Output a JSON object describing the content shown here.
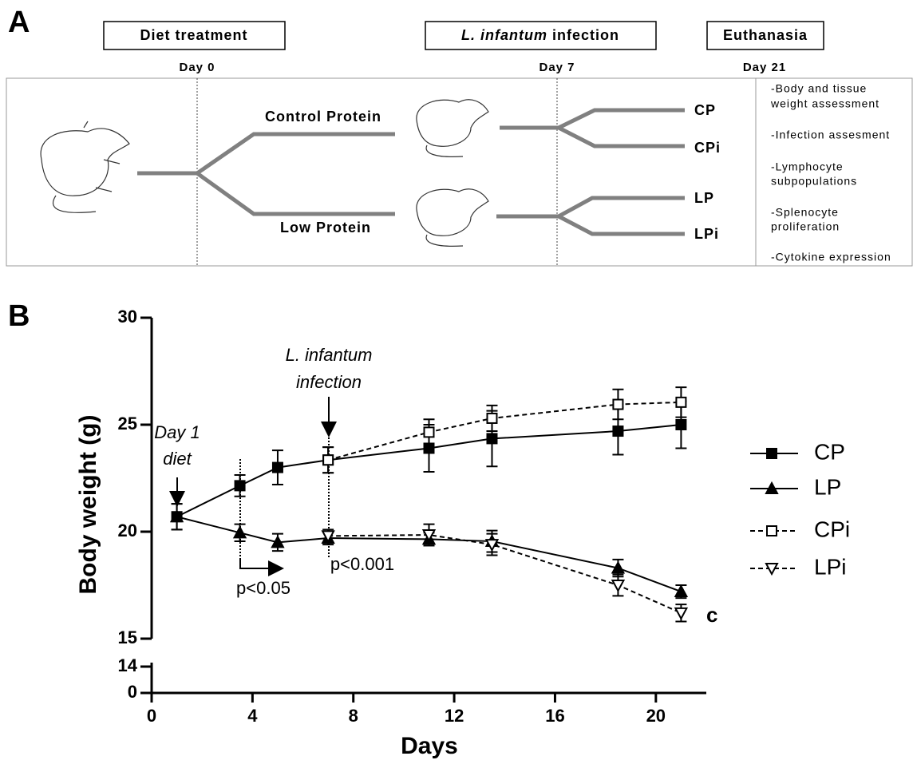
{
  "panel_a": {
    "label": "A",
    "boxes": [
      {
        "text": "Diet treatment"
      },
      {
        "italic": "L. infantum",
        "text": "infection"
      },
      {
        "text": "Euthanasia"
      }
    ],
    "days": [
      "Day 0",
      "Day 7",
      "Day 21"
    ],
    "diets": [
      "Control Protein",
      "Low Protein"
    ],
    "groups": [
      "CP",
      "CPi",
      "LP",
      "LPi"
    ],
    "outcomes": [
      [
        "-Body and tissue",
        "weight assessment"
      ],
      [
        "-Infection assesment"
      ],
      [
        "-Lymphocyte",
        "subpopulations"
      ],
      [
        "-Splenocyte",
        "proliferation"
      ],
      [
        "-Cytokine expression"
      ]
    ]
  },
  "chart_data": {
    "type": "line",
    "label": "B",
    "x_label": "Days",
    "y_label": "Body weight (g)",
    "x": [
      1,
      3.5,
      5,
      7,
      11,
      13.5,
      18.5,
      21
    ],
    "series": [
      {
        "name": "CP",
        "color": "#000000",
        "marker": "square",
        "filled": true,
        "dashed": false,
        "values": [
          20.7,
          22.15,
          23.0,
          23.35,
          23.9,
          24.35,
          24.7,
          25.0
        ],
        "errors": [
          0.6,
          0.5,
          0.8,
          0.6,
          1.1,
          1.3,
          1.1,
          1.1
        ]
      },
      {
        "name": "LP",
        "color": "#000000",
        "marker": "triangle-up",
        "filled": true,
        "dashed": false,
        "values": [
          20.7,
          19.95,
          19.5,
          19.7,
          19.65,
          19.55,
          18.3,
          17.2
        ],
        "errors": [
          0.6,
          0.4,
          0.4,
          0.3,
          0.3,
          0.5,
          0.4,
          0.3
        ]
      },
      {
        "name": "CPi",
        "color": "#000000",
        "marker": "square",
        "filled": false,
        "dashed": true,
        "values": [
          null,
          null,
          null,
          23.35,
          24.65,
          25.3,
          25.95,
          26.05
        ],
        "errors": [
          null,
          null,
          null,
          0.6,
          0.6,
          0.6,
          0.7,
          0.7
        ]
      },
      {
        "name": "LPi",
        "color": "#000000",
        "marker": "triangle-down",
        "filled": false,
        "dashed": true,
        "values": [
          null,
          null,
          null,
          19.8,
          19.85,
          19.4,
          17.5,
          16.2
        ],
        "errors": [
          null,
          null,
          null,
          0.3,
          0.5,
          0.5,
          0.5,
          0.4
        ]
      }
    ],
    "xlim": [
      0,
      22
    ],
    "xticks": [
      0,
      4,
      8,
      12,
      16,
      20
    ],
    "ylim": [
      0,
      30
    ],
    "y_segments": [
      [
        0,
        14
      ],
      [
        15,
        30
      ]
    ],
    "yticks": [
      0,
      14,
      15,
      20,
      25,
      30
    ],
    "annotations": [
      {
        "text": [
          "Day 1",
          "diet"
        ]
      },
      {
        "text": [
          "L. infantum",
          "infection"
        ]
      },
      {
        "text": [
          "p<0.05"
        ]
      },
      {
        "text": [
          "p<0.001"
        ]
      },
      {
        "text": [
          "c"
        ]
      }
    ]
  }
}
